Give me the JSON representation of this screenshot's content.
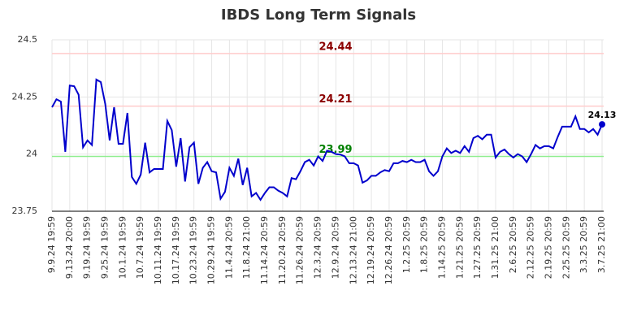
{
  "chart_data": {
    "type": "line",
    "title": "IBDS Long Term Signals",
    "categories": [
      "9.9.24 19:59",
      null,
      null,
      null,
      "9.13.24 20:00",
      null,
      null,
      null,
      "9.19.24 19:59",
      null,
      null,
      null,
      "9.25.24 19:59",
      null,
      null,
      null,
      "10.1.24 19:59",
      null,
      null,
      null,
      "10.7.24 19:59",
      null,
      null,
      null,
      "10.11.24 19:59",
      null,
      null,
      null,
      "10.17.24 19:59",
      null,
      null,
      null,
      "10.23.24 19:59",
      null,
      null,
      null,
      "10.29.24 19:59",
      null,
      null,
      null,
      "11.4.24 20:59",
      null,
      null,
      null,
      "11.8.24 21:00",
      null,
      null,
      null,
      "11.14.24 20:59",
      null,
      null,
      null,
      "11.20.24 20:59",
      null,
      null,
      null,
      "11.26.24 20:59",
      null,
      null,
      null,
      "12.3.24 20:59",
      null,
      null,
      null,
      "12.9.24 20:59",
      null,
      null,
      null,
      "12.13.24 21:00",
      null,
      null,
      null,
      "12.19.24 20:59",
      null,
      null,
      null,
      "12.26.24 20:59",
      null,
      null,
      null,
      "1.2.25 20:59",
      null,
      null,
      null,
      "1.8.25 20:59",
      null,
      null,
      null,
      "1.14.25 20:59",
      null,
      null,
      null,
      "1.21.25 20:59",
      null,
      null,
      null,
      "1.27.25 20:59",
      null,
      null,
      null,
      "1.31.25 21:00",
      null,
      null,
      null,
      "2.6.25 20:59",
      null,
      null,
      null,
      "2.12.25 20:59",
      null,
      null,
      null,
      "2.19.25 20:59",
      null,
      null,
      null,
      "2.25.25 20:59",
      null,
      null,
      null,
      "3.3.25 20:59",
      null,
      null,
      null,
      "3.7.25 21:00"
    ],
    "values": [
      24.205,
      24.24,
      24.23,
      24.01,
      24.3,
      24.297,
      24.26,
      24.03,
      24.06,
      24.04,
      24.326,
      24.315,
      24.22,
      24.06,
      24.205,
      24.045,
      24.045,
      24.18,
      23.9,
      23.87,
      23.91,
      24.05,
      23.92,
      23.935,
      23.935,
      23.935,
      24.145,
      24.105,
      23.945,
      24.07,
      23.88,
      24.03,
      24.05,
      23.87,
      23.94,
      23.965,
      23.925,
      23.92,
      23.805,
      23.835,
      23.94,
      23.905,
      23.98,
      23.865,
      23.94,
      23.815,
      23.83,
      23.8,
      23.83,
      23.855,
      23.855,
      23.84,
      23.83,
      23.815,
      23.895,
      23.89,
      23.925,
      23.965,
      23.975,
      23.95,
      23.99,
      23.97,
      24.015,
      24.01,
      24.0,
      23.998,
      23.99,
      23.96,
      23.96,
      23.95,
      23.875,
      23.885,
      23.905,
      23.905,
      23.92,
      23.93,
      23.925,
      23.96,
      23.96,
      23.97,
      23.965,
      23.975,
      23.965,
      23.965,
      23.975,
      23.925,
      23.905,
      23.925,
      23.99,
      24.025,
      24.005,
      24.015,
      24.005,
      24.035,
      24.01,
      24.07,
      24.08,
      24.065,
      24.085,
      24.085,
      23.985,
      24.01,
      24.02,
      24.0,
      23.985,
      24.0,
      23.99,
      23.965,
      24.0,
      24.04,
      24.025,
      24.035,
      24.035,
      24.025,
      24.075,
      24.12,
      24.12,
      24.12,
      24.165,
      24.11,
      24.11,
      24.095,
      24.11,
      24.085,
      24.13
    ],
    "color": "#0000cc",
    "hlines": [
      {
        "value": 24.44,
        "line_color": "#ffcccc",
        "text_color": "#8b0000"
      },
      {
        "value": 24.21,
        "line_color": "#ffcccc",
        "text_color": "#8b0000"
      },
      {
        "value": 23.99,
        "line_color": "#90ee90",
        "text_color": "#008000"
      }
    ],
    "ylim": [
      23.75,
      24.5
    ],
    "yticks": [
      23.75,
      24,
      24.25,
      24.5
    ],
    "grid": true
  }
}
